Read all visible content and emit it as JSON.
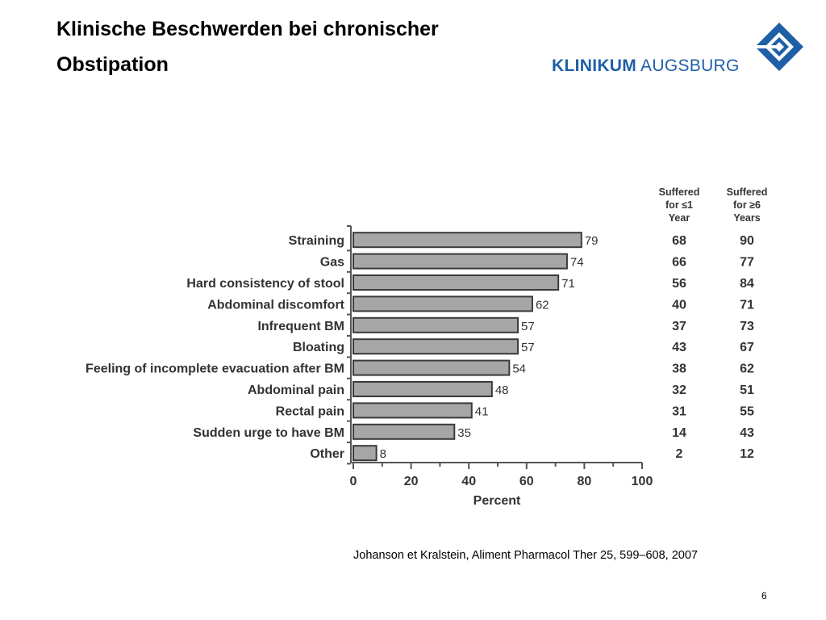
{
  "slide": {
    "title": "Klinische Beschwerden bei chronischer Obstipation",
    "citation": "Johanson et Kralstein, Aliment Pharmacol Ther 25, 599–608, 2007",
    "page_number": "6"
  },
  "logo": {
    "text_bold": "KLINIKUM",
    "text_regular": "AUGSBURG",
    "color": "#1f5fa6"
  },
  "chart_data": {
    "type": "bar",
    "orientation": "horizontal",
    "categories": [
      "Straining",
      "Gas",
      "Hard consistency of stool",
      "Abdominal discomfort",
      "Infrequent BM",
      "Bloating",
      "Feeling of incomplete evacuation after BM",
      "Abdominal pain",
      "Rectal pain",
      "Sudden urge to have BM",
      "Other"
    ],
    "values": [
      79,
      74,
      71,
      62,
      57,
      57,
      54,
      48,
      41,
      35,
      8
    ],
    "xlabel": "Percent",
    "xlim": [
      0,
      100
    ],
    "xticks": [
      0,
      20,
      40,
      60,
      80,
      100
    ],
    "bar_color": "#a6a6a6",
    "table_columns": [
      {
        "header": [
          "Suffered",
          "for ≤1",
          "Year"
        ],
        "values": [
          68,
          66,
          56,
          40,
          37,
          43,
          38,
          32,
          31,
          14,
          2
        ]
      },
      {
        "header": [
          "Suffered",
          "for ≥6",
          "Years"
        ],
        "values": [
          90,
          77,
          84,
          71,
          73,
          67,
          62,
          51,
          55,
          43,
          12
        ]
      }
    ]
  }
}
